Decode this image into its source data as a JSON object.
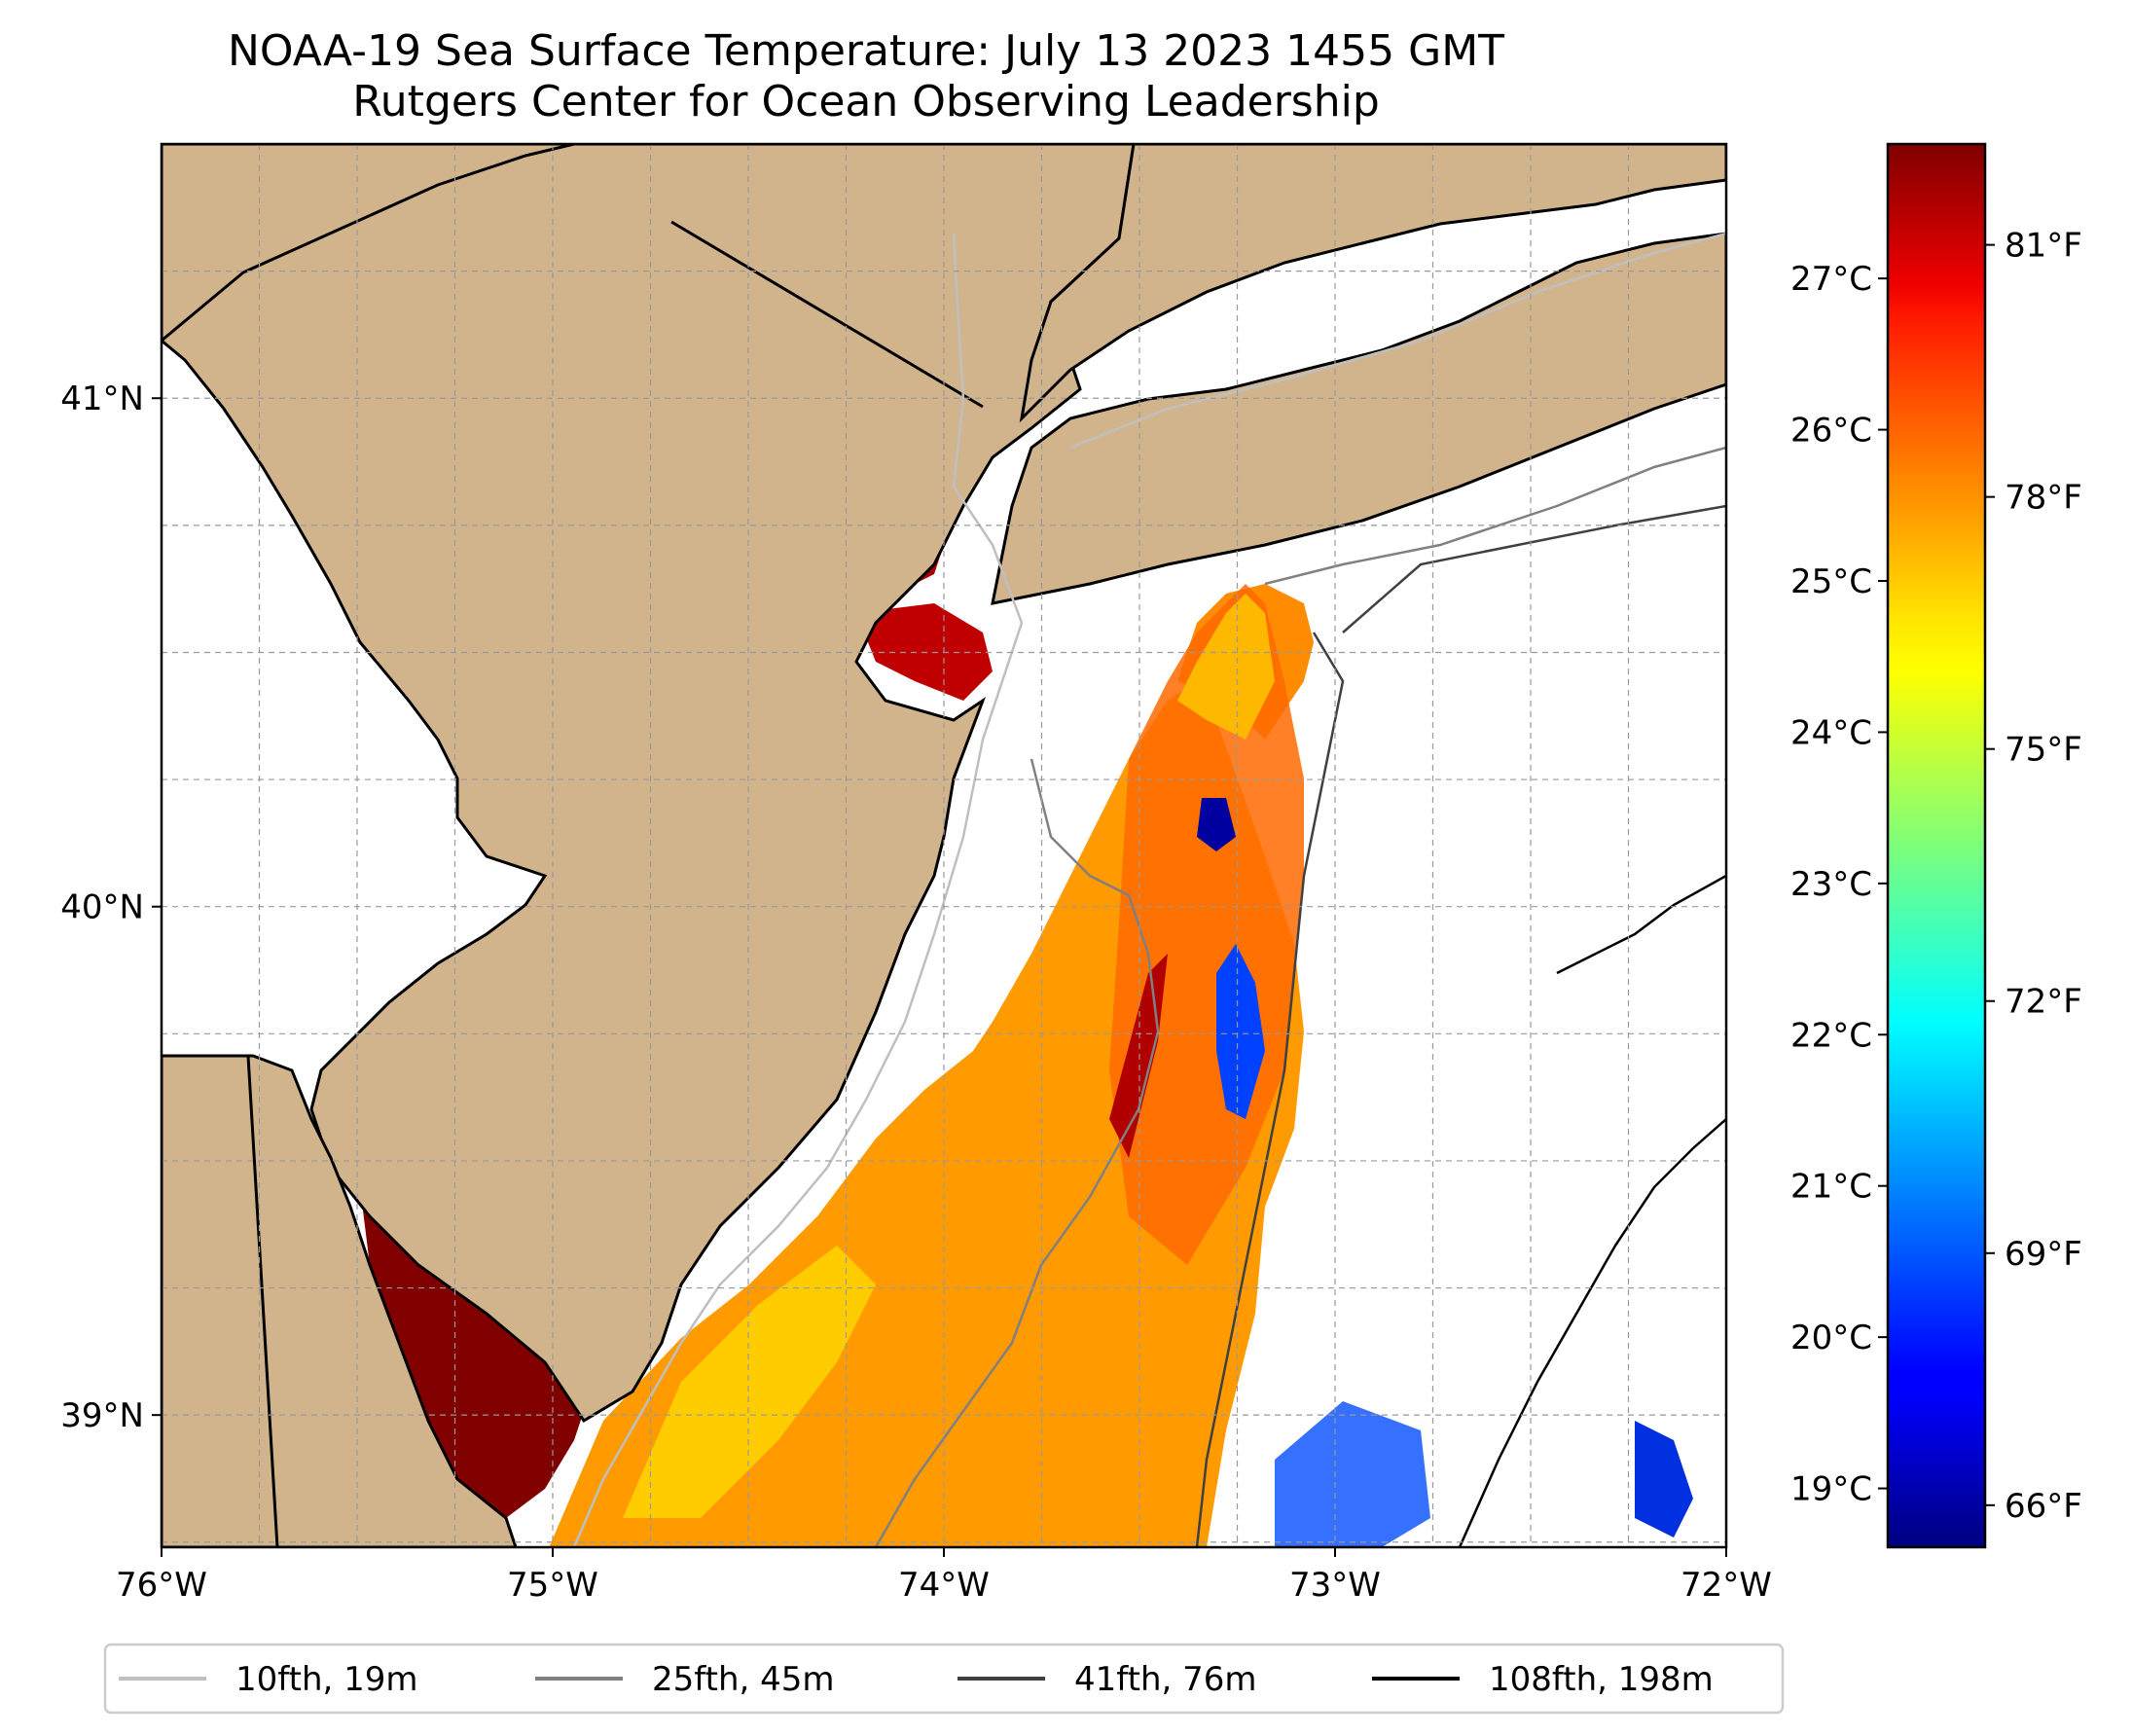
{
  "title": {
    "line1": "NOAA-19 Sea Surface Temperature: July 13 2023 1455 GMT",
    "line2": "Rutgers Center for Ocean Observing Leadership"
  },
  "map": {
    "lon_range": [
      -76,
      -72
    ],
    "lat_range": [
      38.74,
      41.5
    ],
    "lon_ticks": [
      {
        "value": -76,
        "label": "76°W"
      },
      {
        "value": -75,
        "label": "75°W"
      },
      {
        "value": -74,
        "label": "74°W"
      },
      {
        "value": -73,
        "label": "73°W"
      },
      {
        "value": -72,
        "label": "72°W"
      }
    ],
    "lat_ticks": [
      {
        "value": 41,
        "label": "41°N"
      },
      {
        "value": 40,
        "label": "40°N"
      },
      {
        "value": 39,
        "label": "39°N"
      }
    ],
    "land_color": "#d2b48c",
    "gridlines": true
  },
  "colorbar": {
    "colormap": "jet",
    "celsius_ticks": [
      {
        "value": 27,
        "label": "27°C"
      },
      {
        "value": 26,
        "label": "26°C"
      },
      {
        "value": 25,
        "label": "25°C"
      },
      {
        "value": 24,
        "label": "24°C"
      },
      {
        "value": 23,
        "label": "23°C"
      },
      {
        "value": 22,
        "label": "22°C"
      },
      {
        "value": 21,
        "label": "21°C"
      },
      {
        "value": 20,
        "label": "20°C"
      },
      {
        "value": 19,
        "label": "19°C"
      }
    ],
    "fahrenheit_ticks": [
      {
        "value": 81,
        "label": "81°F"
      },
      {
        "value": 78,
        "label": "78°F"
      },
      {
        "value": 75,
        "label": "75°F"
      },
      {
        "value": 72,
        "label": "72°F"
      },
      {
        "value": 69,
        "label": "69°F"
      },
      {
        "value": 66,
        "label": "66°F"
      }
    ]
  },
  "legend": {
    "placement": "bottom",
    "entries": [
      {
        "label": "10fth, 19m",
        "color": "#bfbfbf"
      },
      {
        "label": "25fth, 45m",
        "color": "#808080"
      },
      {
        "label": "41fth, 76m",
        "color": "#404040"
      },
      {
        "label": "108fth, 198m",
        "color": "#000000"
      }
    ]
  }
}
